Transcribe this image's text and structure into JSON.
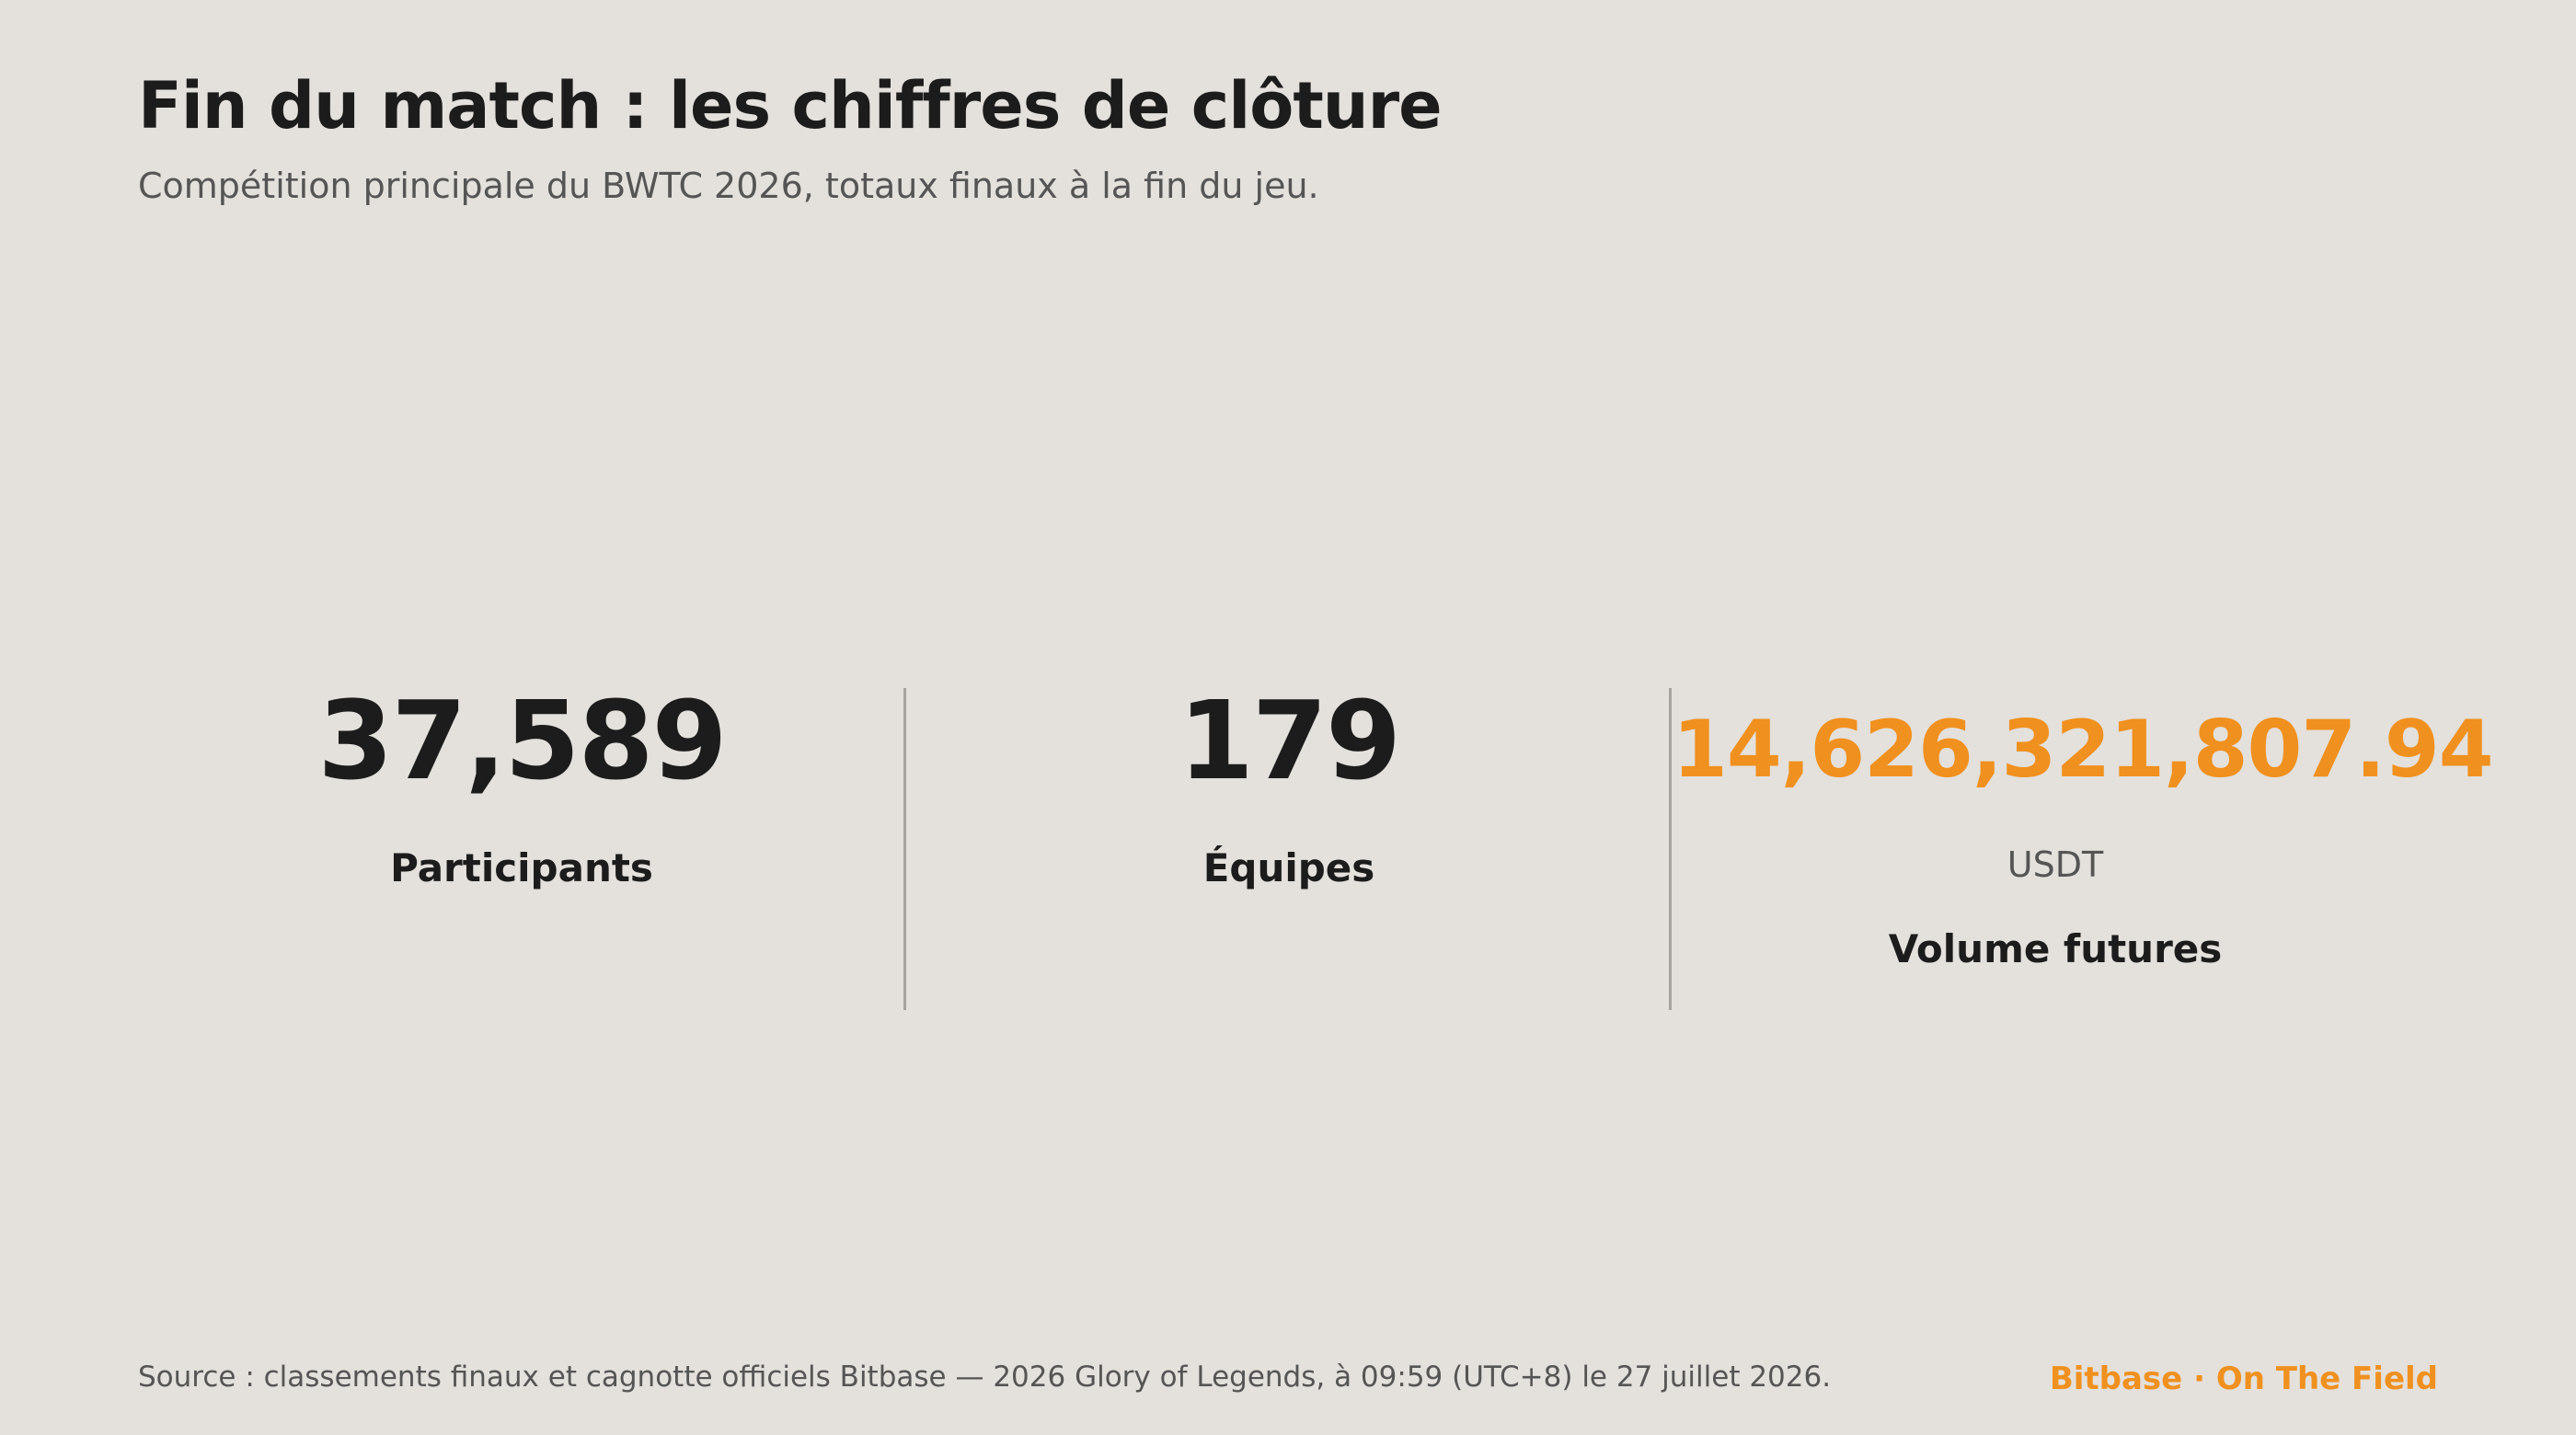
{
  "header": {
    "title": "Fin du match : les chiffres de clôture",
    "subtitle": "Compétition principale du BWTC 2026, totaux finaux à la fin du jeu."
  },
  "stats": [
    {
      "value": "37,589",
      "label": "Participants"
    },
    {
      "value": "179",
      "label": "Équipes"
    },
    {
      "value": "14,626,321,807.94",
      "unit": "USDT",
      "label": "Volume futures"
    }
  ],
  "footer": {
    "source": "Source : classements finaux et cagnotte officiels Bitbase — 2026 Glory of Legends, à 09:59 (UTC+8) le 27 juillet 2026.",
    "brand": "Bitbase · On The Field"
  },
  "colors": {
    "background": "#e4e0db",
    "text": "#1c1c1c",
    "muted": "#555555",
    "accent": "#f0901e",
    "divider": "#a8a39d"
  }
}
